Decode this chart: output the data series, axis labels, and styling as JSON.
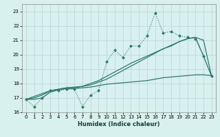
{
  "xlabel": "Humidex (Indice chaleur)",
  "ylabel": "",
  "bg_color": "#d8f0ee",
  "grid_color": "#c0d8d8",
  "line_color": "#2d7a6e",
  "x_data": [
    0,
    1,
    2,
    3,
    4,
    5,
    6,
    7,
    8,
    9,
    10,
    11,
    12,
    13,
    14,
    15,
    16,
    17,
    18,
    19,
    20,
    21,
    22,
    23
  ],
  "y_main": [
    16.9,
    16.4,
    17.0,
    17.5,
    17.5,
    17.6,
    17.6,
    16.4,
    17.2,
    17.5,
    19.5,
    20.3,
    19.8,
    20.6,
    20.6,
    21.3,
    22.9,
    21.5,
    21.6,
    21.3,
    21.2,
    21.1,
    19.9,
    18.5
  ],
  "y_line1": [
    16.9,
    17.1,
    17.3,
    17.5,
    17.6,
    17.7,
    17.7,
    17.8,
    17.9,
    18.1,
    18.3,
    18.6,
    18.9,
    19.2,
    19.5,
    19.8,
    20.1,
    20.4,
    20.6,
    20.9,
    21.1,
    21.2,
    21.0,
    18.5
  ],
  "y_line2": [
    16.9,
    17.0,
    17.2,
    17.5,
    17.6,
    17.7,
    17.75,
    17.8,
    18.0,
    18.2,
    18.5,
    18.8,
    19.1,
    19.4,
    19.65,
    19.9,
    20.15,
    20.4,
    20.65,
    20.9,
    21.1,
    21.2,
    19.9,
    18.5
  ],
  "y_flat": [
    16.9,
    16.9,
    17.0,
    17.4,
    17.55,
    17.65,
    17.65,
    17.7,
    17.75,
    17.85,
    17.95,
    18.0,
    18.05,
    18.1,
    18.15,
    18.2,
    18.3,
    18.4,
    18.45,
    18.5,
    18.55,
    18.6,
    18.6,
    18.55
  ],
  "xlim": [
    -0.5,
    23.5
  ],
  "ylim": [
    16,
    23.5
  ],
  "yticks": [
    16,
    17,
    18,
    19,
    20,
    21,
    22,
    23
  ],
  "xticks": [
    0,
    1,
    2,
    3,
    4,
    5,
    6,
    7,
    8,
    9,
    10,
    11,
    12,
    13,
    14,
    15,
    16,
    17,
    18,
    19,
    20,
    21,
    22,
    23
  ]
}
